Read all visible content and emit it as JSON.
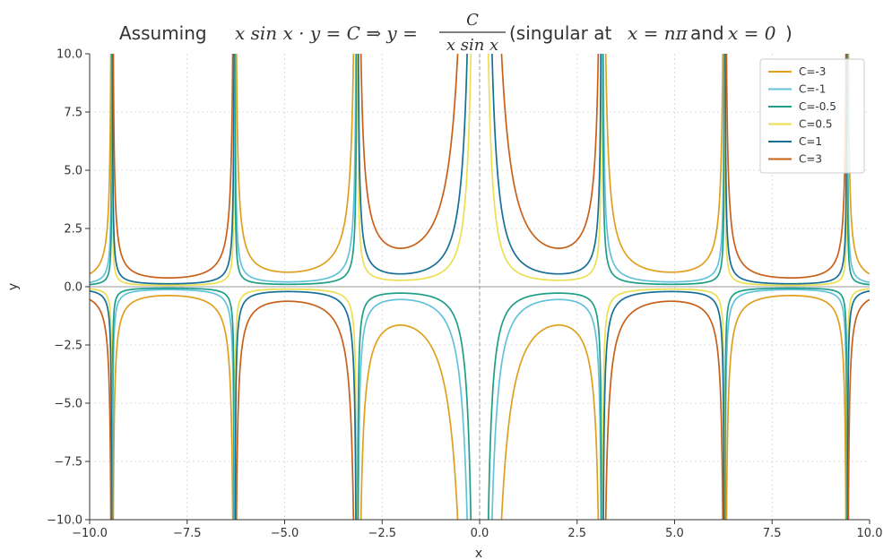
{
  "chart_data": {
    "type": "line",
    "title": {
      "prefix": "Assuming ",
      "eq_lhs": "x sin x · y = C ⇒ y = ",
      "frac_num": "C",
      "frac_den": "x sin x",
      "suffix_1": " (singular at ",
      "cond_1": "x = nπ",
      "suffix_2": " and ",
      "cond_2": "x = 0",
      "suffix_3": ")"
    },
    "xlabel": "x",
    "ylabel": "y",
    "xlim": [
      -10,
      10
    ],
    "ylim": [
      -10,
      10
    ],
    "xticks": [
      -10,
      -7.5,
      -5,
      -2.5,
      0,
      2.5,
      5,
      7.5,
      10
    ],
    "yticks": [
      -10,
      -7.5,
      -5,
      -2.5,
      0,
      2.5,
      5,
      7.5,
      10
    ],
    "xtick_labels": [
      "−10.0",
      "−7.5",
      "−5.0",
      "−2.5",
      "0.0",
      "2.5",
      "5.0",
      "7.5",
      "10.0"
    ],
    "ytick_labels": [
      "−10.0",
      "−7.5",
      "−5.0",
      "−2.5",
      "0.0",
      "2.5",
      "5.0",
      "7.5",
      "10.0"
    ],
    "grid": true,
    "legend_position": "top-right",
    "function": "y = C / (x·sin x)",
    "series": [
      {
        "name": "C=-3",
        "C": -3,
        "color": "#e0a01e"
      },
      {
        "name": "C=-1",
        "C": -1,
        "color": "#62c2dc"
      },
      {
        "name": "C=-0.5",
        "C": -0.5,
        "color": "#1f9e86"
      },
      {
        "name": "C=0.5",
        "C": 0.5,
        "color": "#ecdf52"
      },
      {
        "name": "C=1",
        "C": 1,
        "color": "#156f97"
      },
      {
        "name": "C=3",
        "C": 3,
        "color": "#c8601a"
      }
    ]
  }
}
